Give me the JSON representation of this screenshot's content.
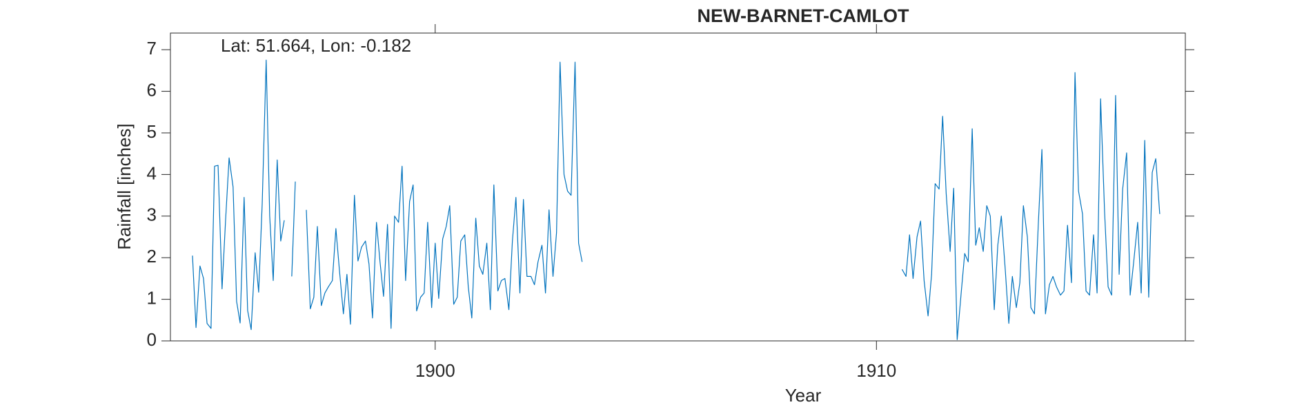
{
  "chart_data": {
    "type": "line",
    "title": "NEW-BARNET-CAMLOT",
    "annotation": "Lat: 51.664, Lon: -0.182",
    "xlabel": "Year",
    "ylabel": "Rainfall [inches]",
    "xlim": [
      1894,
      1917
    ],
    "ylim": [
      0,
      7.4
    ],
    "xticks": [
      1900,
      1910
    ],
    "yticks": [
      0,
      1,
      2,
      3,
      4,
      5,
      6,
      7
    ],
    "x": [
      1894.5,
      1894.58,
      1894.67,
      1894.75,
      1894.83,
      1894.92,
      1895,
      1895.08,
      1895.17,
      1895.25,
      1895.33,
      1895.42,
      1895.5,
      1895.58,
      1895.67,
      1895.75,
      1895.83,
      1895.92,
      1896,
      1896.08,
      1896.17,
      1896.25,
      1896.33,
      1896.42,
      1896.5,
      1896.58,
      1896.67,
      1896.75,
      1896.83,
      1896.92,
      1897,
      1897.08,
      1897.17,
      1897.25,
      1897.33,
      1897.42,
      1897.5,
      1897.58,
      1897.67,
      1897.75,
      1897.83,
      1897.92,
      1898,
      1898.08,
      1898.17,
      1898.25,
      1898.33,
      1898.42,
      1898.5,
      1898.58,
      1898.67,
      1898.75,
      1898.83,
      1898.92,
      1899,
      1899.08,
      1899.17,
      1899.25,
      1899.33,
      1899.42,
      1899.5,
      1899.58,
      1899.67,
      1899.75,
      1899.83,
      1899.92,
      1900,
      1900.08,
      1900.17,
      1900.25,
      1900.33,
      1900.42,
      1900.5,
      1900.58,
      1900.67,
      1900.75,
      1900.83,
      1900.92,
      1901,
      1901.08,
      1901.17,
      1901.25,
      1901.33,
      1901.42,
      1901.5,
      1901.58,
      1901.67,
      1901.75,
      1901.83,
      1901.92,
      1902,
      1902.08,
      1902.17,
      1902.25,
      1902.33,
      1902.42,
      1902.5,
      1902.58,
      1902.67,
      1902.75,
      1902.83,
      1902.92,
      1903,
      1903.08,
      1903.17,
      1903.25,
      1903.33,
      1907,
      1910.58,
      1910.67,
      1910.75,
      1910.83,
      1910.92,
      1911,
      1911.08,
      1911.17,
      1911.25,
      1911.33,
      1911.42,
      1911.5,
      1911.58,
      1911.67,
      1911.75,
      1911.83,
      1911.92,
      1912,
      1912.08,
      1912.17,
      1912.25,
      1912.33,
      1912.42,
      1912.5,
      1912.58,
      1912.67,
      1912.75,
      1912.83,
      1912.92,
      1913,
      1913.08,
      1913.17,
      1913.25,
      1913.33,
      1913.42,
      1913.5,
      1913.58,
      1913.67,
      1913.75,
      1913.83,
      1913.92,
      1914,
      1914.08,
      1914.17,
      1914.25,
      1914.33,
      1914.42,
      1914.5,
      1914.58,
      1914.67,
      1914.75,
      1914.83,
      1914.92,
      1915,
      1915.08,
      1915.17,
      1915.25,
      1915.33,
      1915.42,
      1915.5,
      1915.58,
      1915.67,
      1915.75,
      1915.83,
      1915.92,
      1916,
      1916.08,
      1916.17,
      1916.25,
      1916.33,
      1916.42
    ],
    "series": [
      {
        "name": "Rainfall",
        "color": "#0072bd",
        "values": [
          2.05,
          0.32,
          1.8,
          1.5,
          0.42,
          0.3,
          4.2,
          4.22,
          1.25,
          2.9,
          4.4,
          3.7,
          0.95,
          0.43,
          3.45,
          0.73,
          0.27,
          2.12,
          1.17,
          3.3,
          6.75,
          3.0,
          1.45,
          4.35,
          2.4,
          2.9,
          null,
          1.55,
          3.83,
          null,
          null,
          3.15,
          0.77,
          1.05,
          2.75,
          0.85,
          1.15,
          1.3,
          1.45,
          2.7,
          1.7,
          0.65,
          1.6,
          0.4,
          3.5,
          1.92,
          2.25,
          2.4,
          1.85,
          0.55,
          2.85,
          1.9,
          1.07,
          2.8,
          0.3,
          3.0,
          2.85,
          4.2,
          1.45,
          3.35,
          3.75,
          0.72,
          1.05,
          1.15,
          2.85,
          0.8,
          2.35,
          1.02,
          2.45,
          2.75,
          3.25,
          0.88,
          1.05,
          2.4,
          2.55,
          1.3,
          0.55,
          2.95,
          1.8,
          1.6,
          2.35,
          0.75,
          3.75,
          1.2,
          1.45,
          1.5,
          0.75,
          2.4,
          3.45,
          1.15,
          3.4,
          1.55,
          1.55,
          1.35,
          1.9,
          2.3,
          1.15,
          3.15,
          1.55,
          2.6,
          6.7,
          4.0,
          3.6,
          3.5,
          6.7,
          2.35,
          1.9,
          null,
          1.72,
          1.55,
          2.55,
          1.5,
          2.5,
          2.88,
          1.45,
          0.6,
          1.6,
          3.78,
          3.65,
          5.4,
          3.55,
          2.15,
          3.67,
          0.03,
          1.15,
          2.1,
          1.9,
          5.1,
          2.3,
          2.72,
          2.15,
          3.25,
          3.0,
          0.75,
          2.3,
          3.0,
          1.7,
          0.42,
          1.55,
          0.8,
          1.4,
          3.25,
          2.5,
          0.8,
          0.65,
          2.85,
          4.6,
          0.65,
          1.35,
          1.55,
          1.3,
          1.1,
          1.2,
          2.78,
          1.4,
          6.45,
          3.6,
          3.05,
          1.2,
          1.1,
          2.55,
          1.15,
          5.82,
          3.1,
          1.3,
          1.1,
          5.9,
          1.6,
          3.65,
          4.52,
          1.1,
          1.9,
          2.85,
          1.15,
          4.82,
          1.05,
          4.05,
          4.38,
          3.05
        ]
      }
    ]
  }
}
